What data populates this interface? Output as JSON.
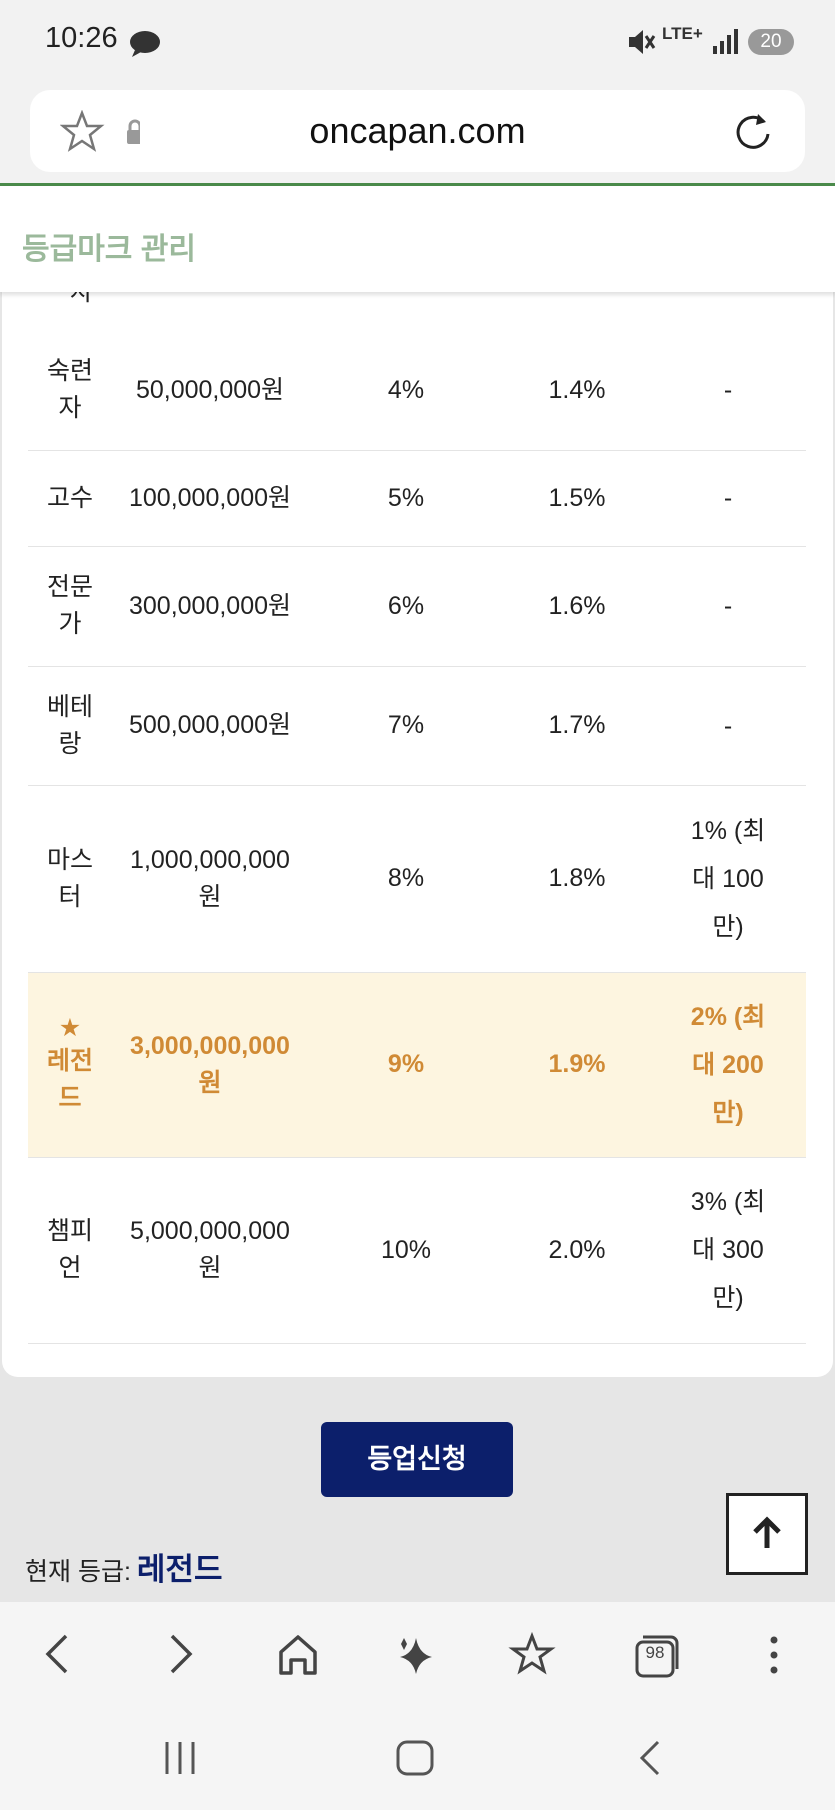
{
  "status_bar": {
    "time": "10:26",
    "network": "LTE+",
    "battery": "20"
  },
  "address_bar": {
    "url": "oncapan.com"
  },
  "header": {
    "title": "등급마크 관리"
  },
  "table": {
    "partial_row": "자",
    "highlight_mark": "★",
    "highlight_row": 5,
    "rows": [
      [
        "숙련자",
        "50,000,000원",
        "4%",
        "1.4%",
        "-"
      ],
      [
        "고수",
        "100,000,000원",
        "5%",
        "1.5%",
        "-"
      ],
      [
        "전문가",
        "300,000,000원",
        "6%",
        "1.6%",
        "-"
      ],
      [
        "베테랑",
        "500,000,000원",
        "7%",
        "1.7%",
        "-"
      ],
      [
        "마스터",
        "1,000,000,000원",
        "8%",
        "1.8%",
        "1% (최대 100만)"
      ],
      [
        "레전드",
        "3,000,000,000원",
        "9%",
        "1.9%",
        "2% (최대 200만)"
      ],
      [
        "챔피언",
        "5,000,000,000원",
        "10%",
        "2.0%",
        "3% (최대 300만)"
      ]
    ]
  },
  "upgrade_button": "등업신청",
  "current_grade": {
    "label": "현재 등급:",
    "value": "레전드"
  },
  "bottom_nav": {
    "tabs_count": "98"
  }
}
